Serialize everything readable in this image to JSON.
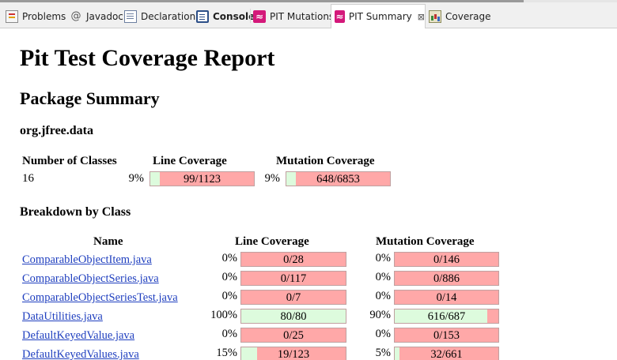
{
  "tabs": [
    {
      "label": "Problems",
      "icon": "problems-icon"
    },
    {
      "label": "Javadoc",
      "icon": "javadoc-icon"
    },
    {
      "label": "Declaration",
      "icon": "declaration-icon"
    },
    {
      "label": "Console",
      "icon": "console-icon"
    },
    {
      "label": "PIT Mutations",
      "icon": "pit-icon"
    },
    {
      "label": "PIT Summary",
      "icon": "pit-icon",
      "active": true,
      "close": "⊠"
    },
    {
      "label": "Coverage",
      "icon": "coverage-icon"
    }
  ],
  "report": {
    "title": "Pit Test Coverage Report",
    "package_summary_heading": "Package Summary",
    "package_name": "org.jfree.data",
    "summary": {
      "headers": {
        "classes": "Number of Classes",
        "line": "Line Coverage",
        "mutation": "Mutation Coverage"
      },
      "classes": "16",
      "line_pct": "9%",
      "line_label": "99/1123",
      "line_fraction": 0.0882,
      "mutation_pct": "9%",
      "mutation_label": "648/6853",
      "mutation_fraction": 0.0946
    },
    "breakdown_heading": "Breakdown by Class",
    "breakdown_headers": {
      "name": "Name",
      "line": "Line Coverage",
      "mutation": "Mutation Coverage"
    },
    "rows": [
      {
        "name": "ComparableObjectItem.java",
        "line_pct": "0%",
        "line_label": "0/28",
        "line_fraction": 0,
        "mut_pct": "0%",
        "mut_label": "0/146",
        "mut_fraction": 0
      },
      {
        "name": "ComparableObjectSeries.java",
        "line_pct": "0%",
        "line_label": "0/117",
        "line_fraction": 0,
        "mut_pct": "0%",
        "mut_label": "0/886",
        "mut_fraction": 0
      },
      {
        "name": "ComparableObjectSeriesTest.java",
        "line_pct": "0%",
        "line_label": "0/7",
        "line_fraction": 0,
        "mut_pct": "0%",
        "mut_label": "0/14",
        "mut_fraction": 0
      },
      {
        "name": "DataUtilities.java",
        "line_pct": "100%",
        "line_label": "80/80",
        "line_fraction": 1.0,
        "mut_pct": "90%",
        "mut_label": "616/687",
        "mut_fraction": 0.8967
      },
      {
        "name": "DefaultKeyedValue.java",
        "line_pct": "0%",
        "line_label": "0/25",
        "line_fraction": 0,
        "mut_pct": "0%",
        "mut_label": "0/153",
        "mut_fraction": 0
      },
      {
        "name": "DefaultKeyedValues.java",
        "line_pct": "15%",
        "line_label": "19/123",
        "line_fraction": 0.1545,
        "mut_pct": "5%",
        "mut_label": "32/661",
        "mut_fraction": 0.0484
      }
    ]
  },
  "colors": {
    "covered": "#ddfbdd",
    "uncovered": "#ffa8a8",
    "link": "#1f3fbf",
    "pit_icon": "#d4187a"
  }
}
